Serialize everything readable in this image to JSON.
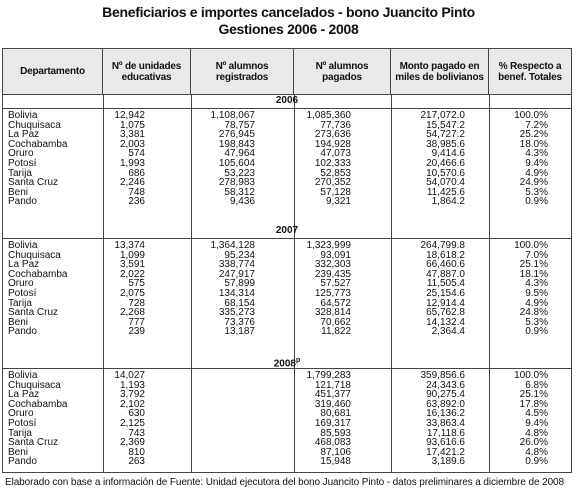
{
  "title": "Beneficiarios e importes cancelados - bono Juancito Pinto",
  "subtitle": "Gestiones 2006 - 2008",
  "headers": [
    "Departamento",
    "Nº de unidades educativas",
    "Nº alumnos registrados",
    "Nº alumnos pagados",
    "Monto pagado en miles de bolivianos",
    "% Respecto a benef. Totales"
  ],
  "sections": [
    {
      "year": "2006",
      "rows": [
        [
          "Bolivia",
          "12,942",
          "1,108,067",
          "1,085,360",
          "217,072.0",
          "100.0%"
        ],
        [
          "Chuquisaca",
          "1,075",
          "78,757",
          "77,736",
          "15,547.2",
          "7.2%"
        ],
        [
          "La Paz",
          "3,381",
          "276,945",
          "273,636",
          "54,727.2",
          "25.2%"
        ],
        [
          "Cochabamba",
          "2,003",
          "198,843",
          "194,928",
          "38,985.6",
          "18.0%"
        ],
        [
          "Oruro",
          "574",
          "47,964",
          "47,073",
          "9,414.6",
          "4.3%"
        ],
        [
          "Potosí",
          "1,993",
          "105,604",
          "102,333",
          "20,466.6",
          "9.4%"
        ],
        [
          "Tarija",
          "686",
          "53,223",
          "52,853",
          "10,570.6",
          "4.9%"
        ],
        [
          "Santa Cruz",
          "2,246",
          "278,983",
          "270,352",
          "54,070.4",
          "24.9%"
        ],
        [
          "Beni",
          "748",
          "58,312",
          "57,128",
          "11,425.6",
          "5.3%"
        ],
        [
          "Pando",
          "236",
          "9,436",
          "9,321",
          "1,864.2",
          "0.9%"
        ]
      ]
    },
    {
      "year": "2007",
      "rows": [
        [
          "Bolivia",
          "13,374",
          "1,364,128",
          "1,323,999",
          "264,799.8",
          "100.0%"
        ],
        [
          "Chuquisaca",
          "1,099",
          "95,234",
          "93,091",
          "18,618.2",
          "7.0%"
        ],
        [
          "La Paz",
          "3,591",
          "338,774",
          "332,303",
          "66,460.6",
          "25.1%"
        ],
        [
          "Cochabamba",
          "2,022",
          "247,917",
          "239,435",
          "47,887.0",
          "18.1%"
        ],
        [
          "Oruro",
          "575",
          "57,899",
          "57,527",
          "11,505.4",
          "4.3%"
        ],
        [
          "Potosí",
          "2,075",
          "134,314",
          "125,773",
          "25,154.6",
          "9.5%"
        ],
        [
          "Tarija",
          "728",
          "68,154",
          "64,572",
          "12,914.4",
          "4.9%"
        ],
        [
          "Santa Cruz",
          "2,268",
          "335,273",
          "328,814",
          "65,762.8",
          "24.8%"
        ],
        [
          "Beni",
          "777",
          "73,376",
          "70,662",
          "14,132.4",
          "5.3%"
        ],
        [
          "Pando",
          "239",
          "13,187",
          "11,822",
          "2,364.4",
          "0.9%"
        ]
      ]
    },
    {
      "year": "2008",
      "year_mark": "p",
      "rows": [
        [
          "Bolivia",
          "14,027",
          "",
          "1,799,283",
          "359,856.6",
          "100.0%"
        ],
        [
          "Chuquisaca",
          "1,193",
          "",
          "121,718",
          "24,343.6",
          "6.8%"
        ],
        [
          "La Paz",
          "3,792",
          "",
          "451,377",
          "90,275.4",
          "25.1%"
        ],
        [
          "Cochabamba",
          "2,102",
          "",
          "319,460",
          "63,892.0",
          "17.8%"
        ],
        [
          "Oruro",
          "630",
          "",
          "80,681",
          "16,136.2",
          "4.5%"
        ],
        [
          "Potosí",
          "2,125",
          "",
          "169,317",
          "33,863.4",
          "9.4%"
        ],
        [
          "Tarija",
          "743",
          "",
          "85,593",
          "17,118.6",
          "4.8%"
        ],
        [
          "Santa Cruz",
          "2,369",
          "",
          "468,083",
          "93,616.6",
          "26.0%"
        ],
        [
          "Beni",
          "810",
          "",
          "87,106",
          "17,421.2",
          "4.8%"
        ],
        [
          "Pando",
          "263",
          "",
          "15,948",
          "3,189.6",
          "0.9%"
        ]
      ]
    }
  ],
  "footer": "Elaborado con base a información de Fuente:  Unidad ejecutora del bono Juancito Pinto - datos preliminares a diciembre de 2008"
}
